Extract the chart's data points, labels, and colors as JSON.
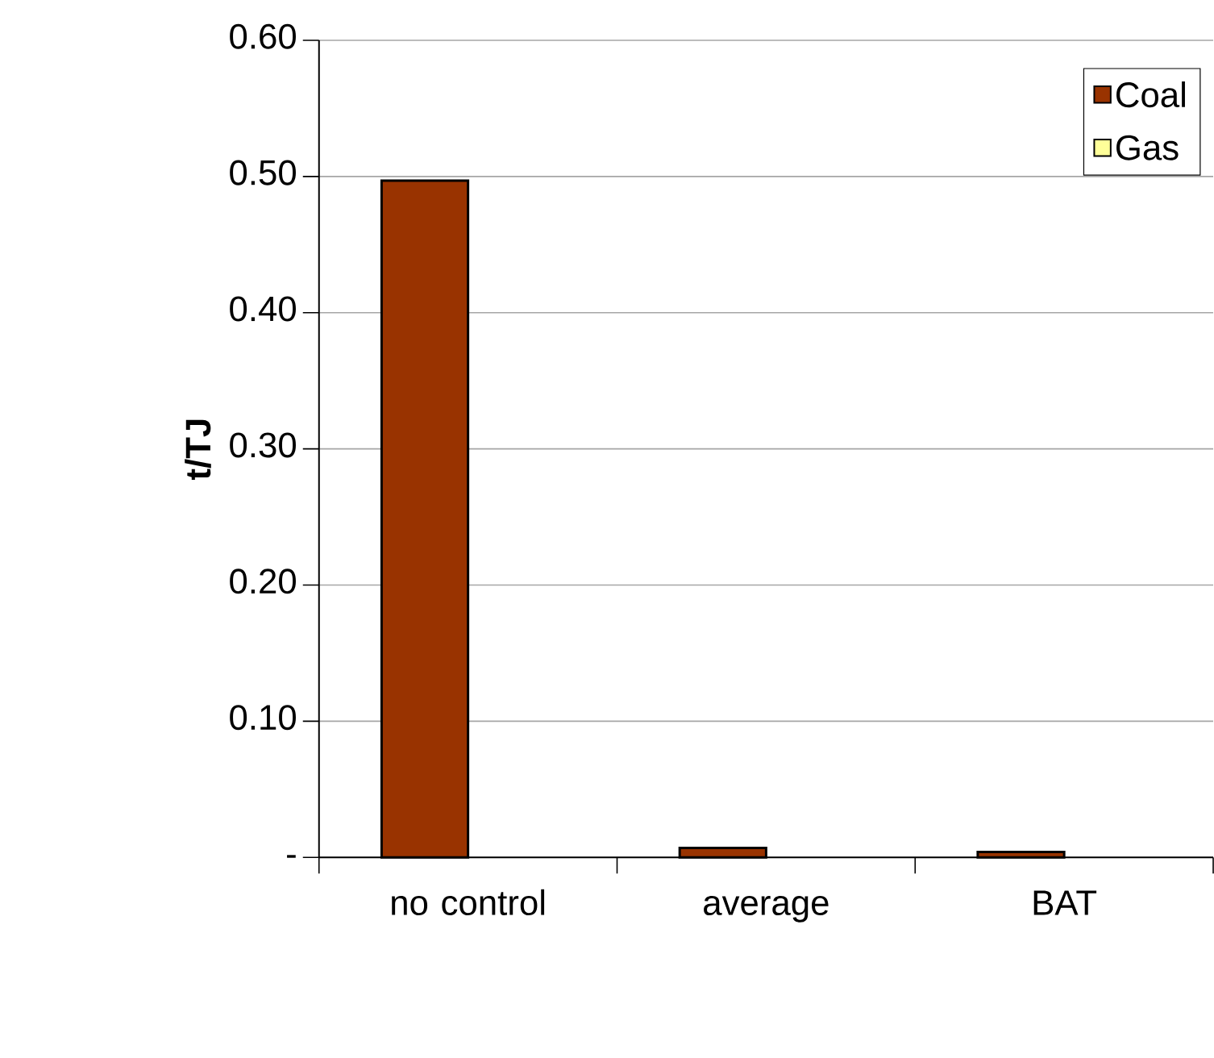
{
  "chart_data": {
    "type": "bar",
    "ylabel": "t/TJ",
    "categories": [
      "no control",
      "average",
      "BAT"
    ],
    "series": [
      {
        "name": "Coal",
        "color": "#993300",
        "values": [
          0.497,
          0.007,
          0.004
        ]
      },
      {
        "name": "Gas",
        "color": "#ffff99",
        "values": [
          null,
          null,
          null
        ]
      }
    ],
    "ylim": [
      0,
      0.6
    ],
    "yticks": [
      {
        "value": 0,
        "label": "-"
      },
      {
        "value": 0.1,
        "label": "0.10"
      },
      {
        "value": 0.2,
        "label": "0.20"
      },
      {
        "value": 0.3,
        "label": "0.30"
      },
      {
        "value": 0.4,
        "label": "0.40"
      },
      {
        "value": 0.5,
        "label": "0.50"
      },
      {
        "value": 0.6,
        "label": "0.60"
      }
    ],
    "grid": "y",
    "legend": "top right"
  }
}
